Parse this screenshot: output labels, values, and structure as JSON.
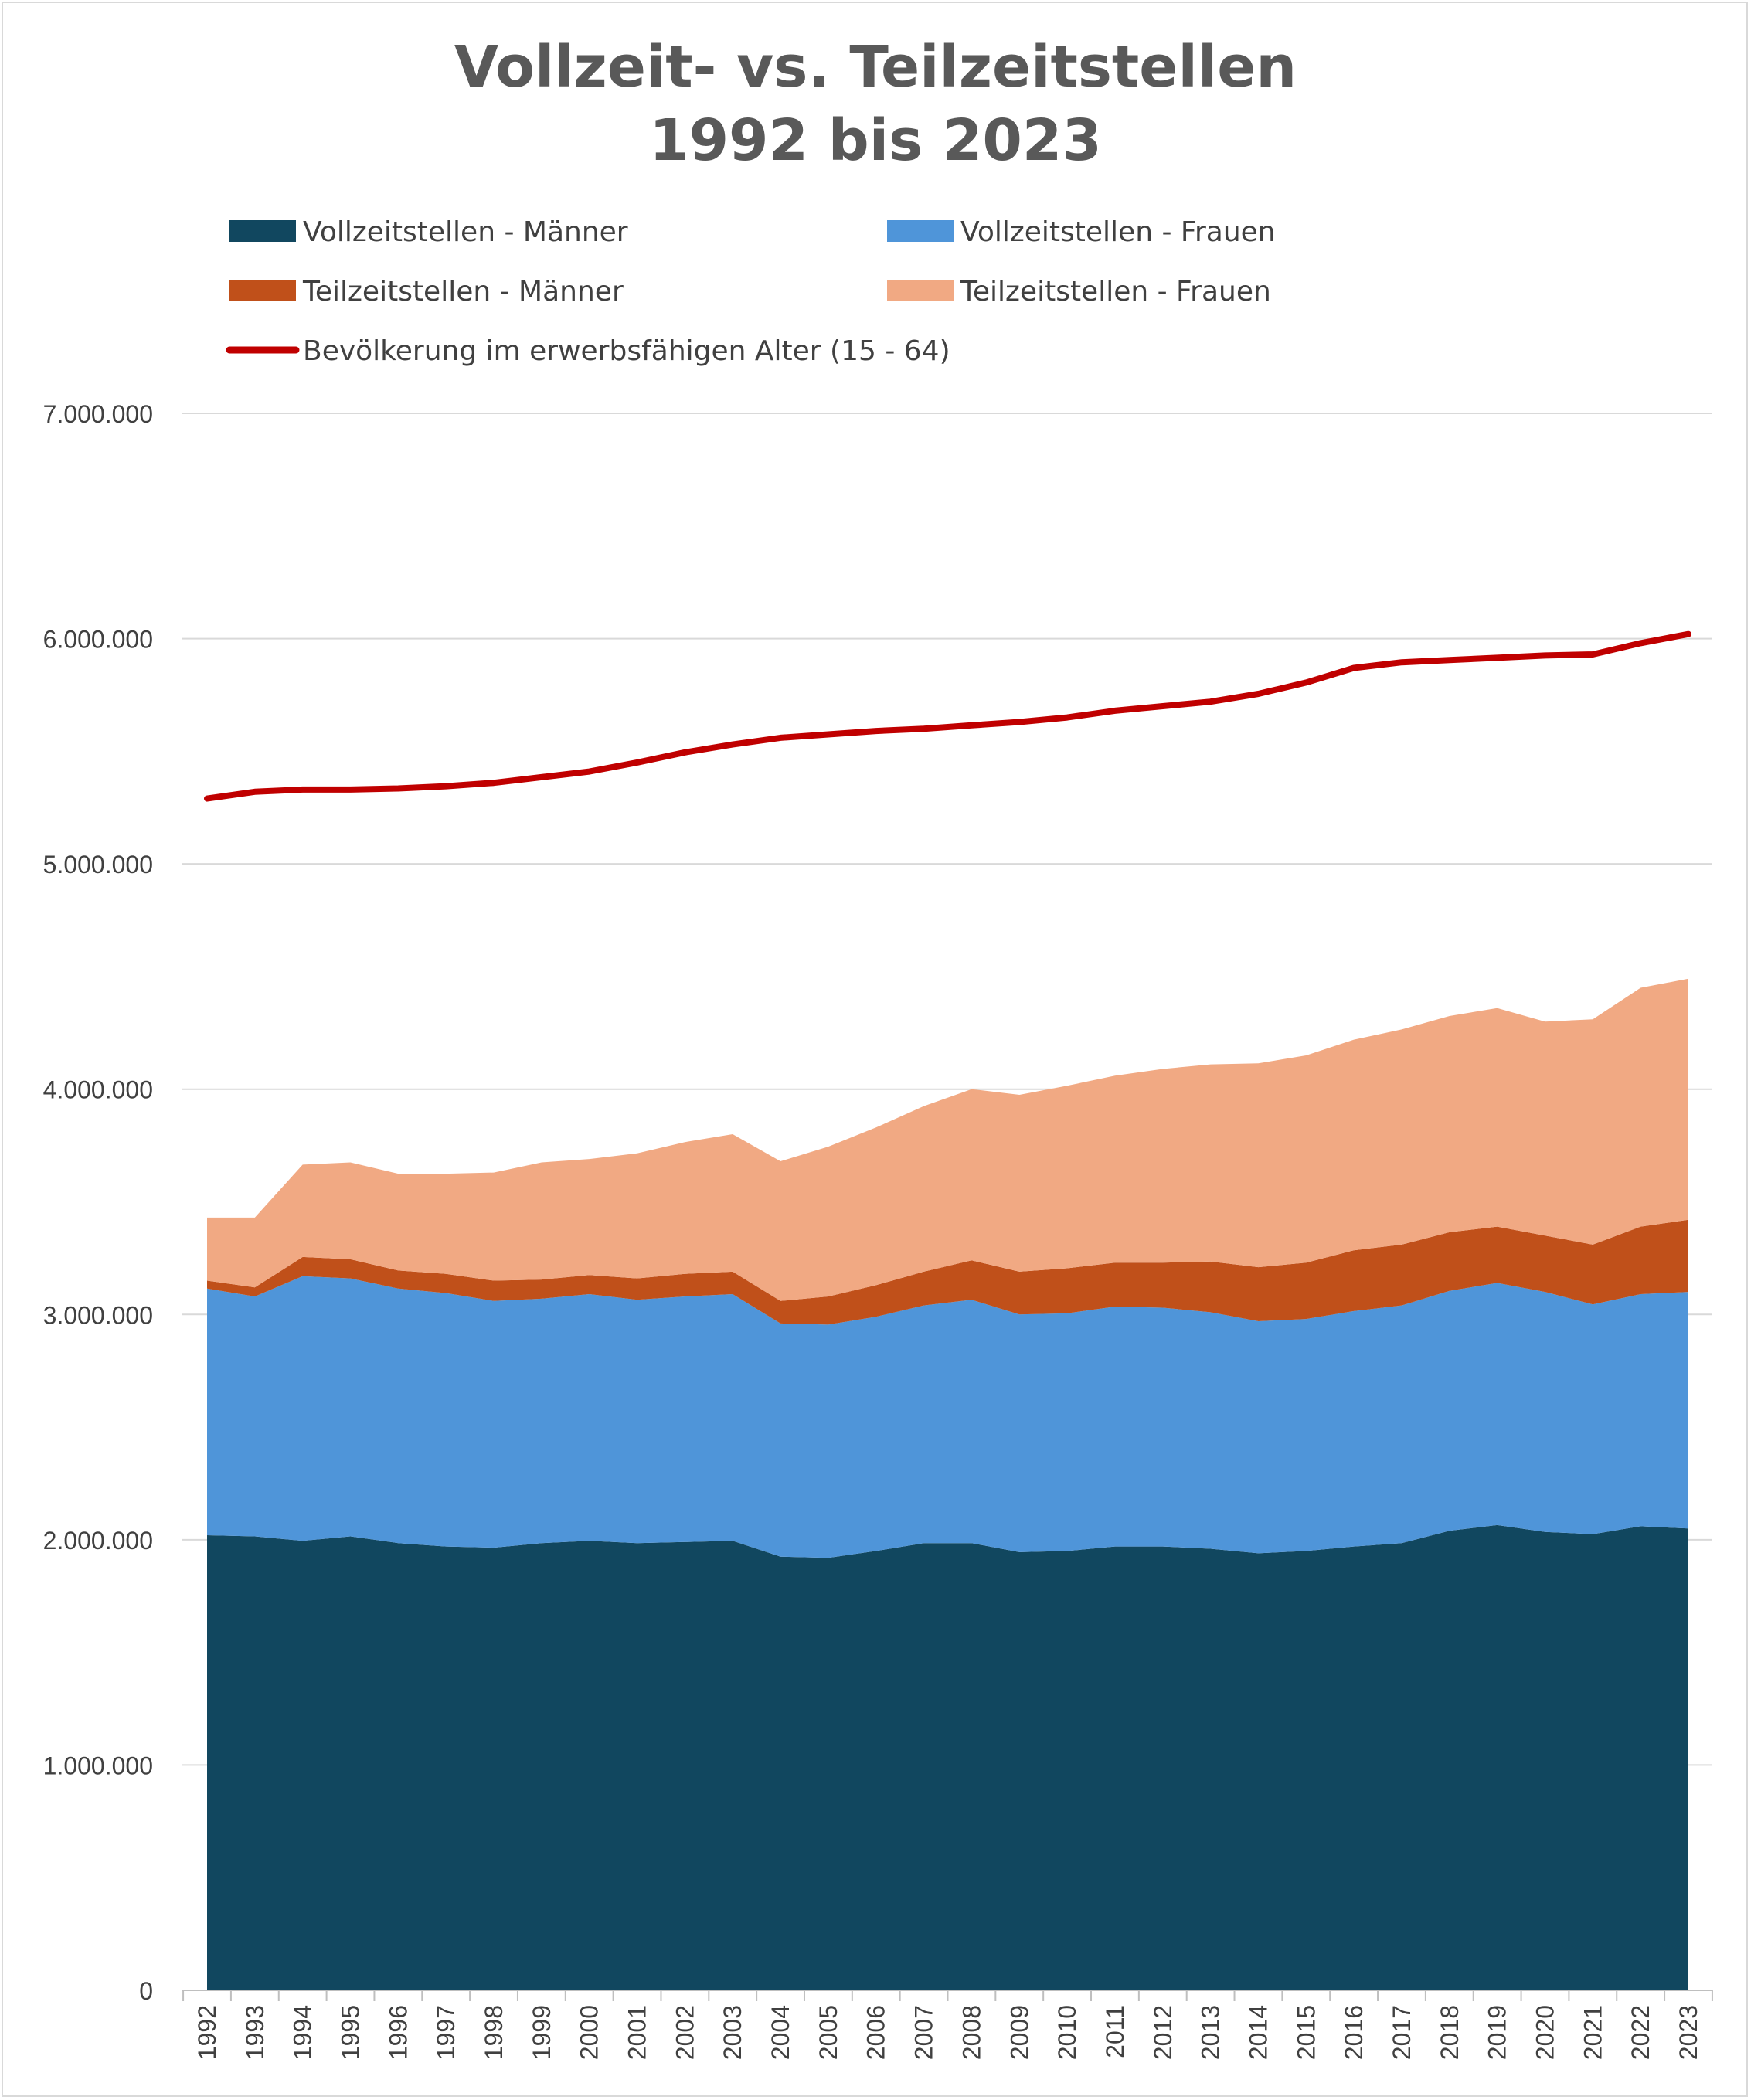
{
  "chart_data": {
    "type": "area",
    "title_lines": [
      "Vollzeit- vs. Teilzeitstellen",
      "1992 bis 2023"
    ],
    "ylim": [
      0,
      7000000
    ],
    "y_ticks": [
      {
        "value": 0,
        "label": "0"
      },
      {
        "value": 1000000,
        "label": "1.000.000"
      },
      {
        "value": 2000000,
        "label": "2.000.000"
      },
      {
        "value": 3000000,
        "label": "3.000.000"
      },
      {
        "value": 4000000,
        "label": "4.000.000"
      },
      {
        "value": 5000000,
        "label": "5.000.000"
      },
      {
        "value": 6000000,
        "label": "6.000.000"
      },
      {
        "value": 7000000,
        "label": "7.000.000"
      }
    ],
    "grid": true,
    "legend_position": "top",
    "categories": [
      "1992",
      "1993",
      "1994",
      "1995",
      "1996",
      "1997",
      "1998",
      "1999",
      "2000",
      "2001",
      "2002",
      "2003",
      "2004",
      "2005",
      "2006",
      "2007",
      "2008",
      "2009",
      "2010",
      "2011",
      "2012",
      "2013",
      "2014",
      "2015",
      "2016",
      "2017",
      "2018",
      "2019",
      "2020",
      "2021",
      "2022",
      "2023"
    ],
    "stacked_series": [
      {
        "name": "Vollzeitstellen - Männer",
        "color": "#11475f",
        "values": [
          2020000,
          2015000,
          1995000,
          2015000,
          1985000,
          1970000,
          1965000,
          1985000,
          1995000,
          1985000,
          1990000,
          1995000,
          1925000,
          1920000,
          1950000,
          1985000,
          1985000,
          1945000,
          1950000,
          1970000,
          1970000,
          1960000,
          1940000,
          1950000,
          1970000,
          1985000,
          2040000,
          2065000,
          2035000,
          2025000,
          2060000,
          2050000
        ]
      },
      {
        "name": "Vollzeitstellen - Frauen",
        "color": "#4f95d9",
        "values": [
          1095000,
          1065000,
          1175000,
          1145000,
          1130000,
          1125000,
          1095000,
          1085000,
          1095000,
          1080000,
          1090000,
          1095000,
          1035000,
          1035000,
          1040000,
          1055000,
          1080000,
          1055000,
          1055000,
          1065000,
          1060000,
          1050000,
          1030000,
          1030000,
          1045000,
          1055000,
          1065000,
          1075000,
          1065000,
          1020000,
          1030000,
          1050000
        ]
      },
      {
        "name": "Teilzeitstellen - Männer",
        "color": "#c0501a",
        "values": [
          35000,
          40000,
          85000,
          85000,
          80000,
          85000,
          90000,
          85000,
          85000,
          95000,
          100000,
          100000,
          100000,
          125000,
          140000,
          150000,
          175000,
          190000,
          200000,
          195000,
          200000,
          225000,
          240000,
          250000,
          270000,
          270000,
          260000,
          250000,
          250000,
          265000,
          300000,
          320000
        ]
      },
      {
        "name": "Teilzeitstellen - Frauen",
        "color": "#f1a983",
        "values": [
          280000,
          310000,
          410000,
          430000,
          430000,
          445000,
          480000,
          520000,
          515000,
          555000,
          585000,
          610000,
          620000,
          665000,
          700000,
          735000,
          760000,
          785000,
          810000,
          830000,
          860000,
          875000,
          905000,
          920000,
          935000,
          955000,
          960000,
          970000,
          950000,
          1000000,
          1060000,
          1070000
        ]
      }
    ],
    "line_series": {
      "name": "Bevölkerung im erwerbsfähigen Alter (15 - 64)",
      "color": "#c00000",
      "values": [
        5290000,
        5320000,
        5330000,
        5330000,
        5335000,
        5345000,
        5360000,
        5385000,
        5410000,
        5450000,
        5495000,
        5530000,
        5560000,
        5575000,
        5590000,
        5600000,
        5615000,
        5630000,
        5650000,
        5680000,
        5700000,
        5720000,
        5755000,
        5805000,
        5870000,
        5895000,
        5905000,
        5915000,
        5925000,
        5930000,
        5980000,
        6020000
      ]
    }
  }
}
